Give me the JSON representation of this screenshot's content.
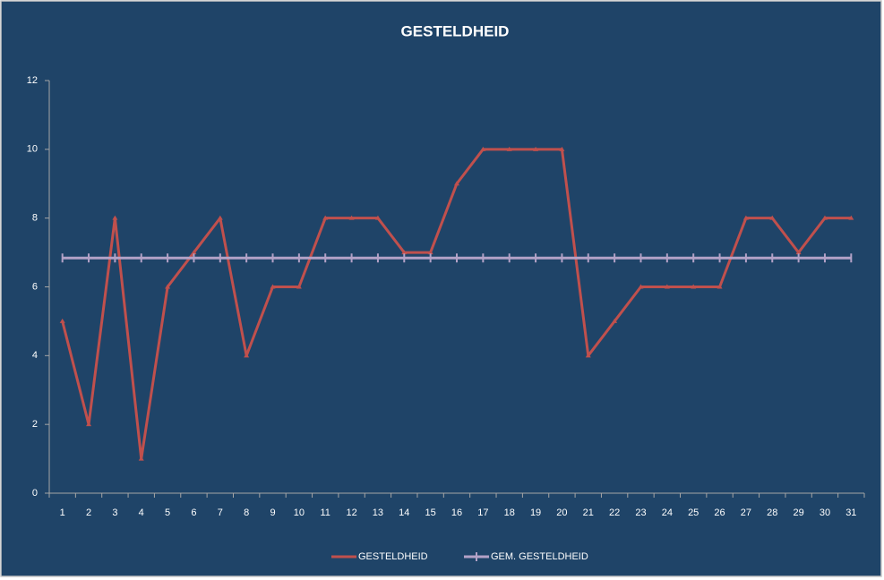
{
  "chart_data": {
    "type": "line",
    "title": "GESTELDHEID",
    "categories": [
      1,
      2,
      3,
      4,
      5,
      6,
      7,
      8,
      9,
      10,
      11,
      12,
      13,
      14,
      15,
      16,
      17,
      18,
      19,
      20,
      21,
      22,
      23,
      24,
      25,
      26,
      27,
      28,
      29,
      30,
      31
    ],
    "series": [
      {
        "name": "GESTELDHEID",
        "color": "#c0504d",
        "marker": "triangle",
        "values": [
          5,
          2,
          8,
          1,
          6,
          7,
          8,
          4,
          6,
          6,
          8,
          8,
          8,
          7,
          7,
          9,
          10,
          10,
          10,
          10,
          4,
          5,
          6,
          6,
          6,
          6,
          8,
          8,
          7,
          8,
          8
        ]
      },
      {
        "name": "GEM. GESTELDHEID",
        "color": "#b3a2c7",
        "marker": "plus",
        "values": [
          6.84,
          6.84,
          6.84,
          6.84,
          6.84,
          6.84,
          6.84,
          6.84,
          6.84,
          6.84,
          6.84,
          6.84,
          6.84,
          6.84,
          6.84,
          6.84,
          6.84,
          6.84,
          6.84,
          6.84,
          6.84,
          6.84,
          6.84,
          6.84,
          6.84,
          6.84,
          6.84,
          6.84,
          6.84,
          6.84,
          6.84
        ]
      }
    ],
    "ylim": [
      0,
      12
    ],
    "yticks": [
      0,
      2,
      4,
      6,
      8,
      10,
      12
    ],
    "grid": false,
    "legend": "bottom"
  }
}
